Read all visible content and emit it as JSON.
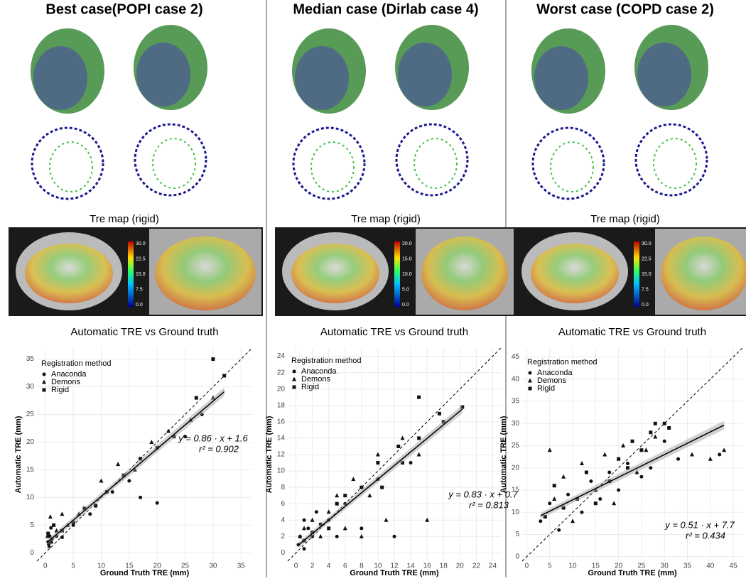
{
  "panels": [
    {
      "title": "Best case(POPI case 2)",
      "tre_label": "Tre map (rigid)",
      "colorbar_ticks": [
        "30.0",
        "22.5",
        "15.0",
        "7.5",
        "0.0"
      ]
    },
    {
      "title": "Median case (Dirlab case 4)",
      "tre_label": "Tre map (rigid)",
      "colorbar_ticks": [
        "20.0",
        "15.0",
        "10.0",
        "5.0",
        "0.0"
      ]
    },
    {
      "title": "Worst case (COPD case 2)",
      "tre_label": "Tre map (rigid)",
      "colorbar_ticks": [
        "30.0",
        "22.5",
        "15.0",
        "7.5",
        "0.0"
      ]
    }
  ],
  "chart_data": [
    {
      "type": "scatter",
      "title": "Automatic TRE vs Ground truth",
      "x_label": "Ground Truth TRE (mm)",
      "y_label": "Automatic TRE (mm)",
      "legend_title": "Registration method",
      "xlim": [
        -1.5,
        37
      ],
      "ylim": [
        -1.5,
        37
      ],
      "xticks": [
        0,
        5,
        10,
        15,
        20,
        25,
        30,
        35
      ],
      "yticks": [
        0,
        5,
        10,
        15,
        20,
        25,
        30,
        35
      ],
      "grid": true,
      "fit": {
        "slope": 0.86,
        "intercept": 1.6
      },
      "annotations": [
        "y = 0.86 · x + 1.6",
        "r² = 0.902"
      ],
      "series": [
        {
          "name": "Anaconda",
          "marker": "circle",
          "color": "#111111",
          "x": [
            0.5,
            0.8,
            1,
            1.2,
            0.6,
            2,
            3,
            5,
            8,
            12,
            15,
            17,
            20,
            25,
            28
          ],
          "values": [
            2,
            3,
            4.5,
            2.5,
            1.5,
            3,
            2.8,
            5,
            7,
            11,
            13,
            10,
            9,
            21,
            25
          ]
        },
        {
          "name": "Demons",
          "marker": "triangle",
          "color": "#111111",
          "x": [
            0.4,
            0.9,
            1.1,
            2,
            4,
            6,
            10,
            13,
            16,
            19,
            22,
            26,
            30,
            0.7,
            3
          ],
          "values": [
            3,
            6.5,
            2,
            4,
            5,
            7,
            13,
            16,
            15,
            20,
            22,
            24,
            28,
            1.2,
            7
          ]
        },
        {
          "name": "Rigid",
          "marker": "square",
          "color": "#111111",
          "x": [
            0.5,
            1,
            1.5,
            3,
            5,
            7,
            9,
            11,
            14,
            17,
            20,
            23,
            27,
            30,
            32
          ],
          "values": [
            3.5,
            2,
            5,
            4,
            5.5,
            8,
            8.5,
            11,
            14,
            17,
            19,
            21,
            28,
            35,
            32
          ]
        }
      ]
    },
    {
      "type": "scatter",
      "title": "Automatic TRE vs Ground truth",
      "x_label": "Ground Truth TRE (mm)",
      "y_label": "Automatic TRE (mm)",
      "legend_title": "Registration method",
      "xlim": [
        -1,
        25
      ],
      "ylim": [
        -1,
        25
      ],
      "xticks": [
        0,
        2,
        4,
        6,
        8,
        10,
        12,
        14,
        16,
        18,
        20,
        22,
        24
      ],
      "yticks": [
        0,
        2,
        4,
        6,
        8,
        10,
        12,
        14,
        16,
        18,
        20,
        22,
        24
      ],
      "grid": true,
      "fit": {
        "slope": 0.83,
        "intercept": 0.7
      },
      "annotations": [
        "y = 0.83 · x + 0.7",
        "r² = 0.813"
      ],
      "series": [
        {
          "name": "Anaconda",
          "marker": "circle",
          "color": "#111111",
          "x": [
            0.3,
            0.5,
            1,
            1.5,
            2,
            3,
            4,
            5,
            6,
            8,
            10,
            12,
            14,
            1,
            2.5
          ],
          "values": [
            1,
            2,
            0.5,
            3,
            2,
            3.5,
            4,
            2,
            6,
            3,
            9,
            2,
            11,
            4,
            5
          ]
        },
        {
          "name": "Demons",
          "marker": "triangle",
          "color": "#111111",
          "x": [
            0.5,
            1,
            2,
            3,
            4,
            5,
            6,
            7,
            8,
            9,
            10,
            11,
            13,
            15,
            16
          ],
          "values": [
            2,
            3,
            4,
            2,
            5,
            7,
            3,
            9,
            2,
            7,
            12,
            4,
            14,
            12,
            4
          ]
        },
        {
          "name": "Rigid",
          "marker": "square",
          "color": "#111111",
          "x": [
            1,
            2,
            4,
            5,
            6,
            8,
            10,
            10.5,
            12.5,
            13,
            15,
            15,
            17.5,
            18,
            20.3
          ],
          "values": [
            1.5,
            2.5,
            3,
            6,
            7,
            8,
            11,
            8,
            13,
            11,
            19,
            14,
            17,
            16,
            17.8
          ]
        }
      ]
    },
    {
      "type": "scatter",
      "title": "Automatic TRE vs Ground truth",
      "x_label": "Ground Truth TRE (mm)",
      "y_label": "Automatic TRE (mm)",
      "legend_title": "Registration method",
      "xlim": [
        -1,
        47
      ],
      "ylim": [
        -1,
        47
      ],
      "xticks": [
        0,
        5,
        10,
        15,
        20,
        25,
        30,
        35,
        40,
        45
      ],
      "yticks": [
        0,
        5,
        10,
        15,
        20,
        25,
        30,
        35,
        40,
        45
      ],
      "grid": true,
      "fit": {
        "slope": 0.51,
        "intercept": 7.7
      },
      "annotations": [
        "y = 0.51 · x + 7.7",
        "r² = 0.434"
      ],
      "series": [
        {
          "name": "Anaconda",
          "marker": "circle",
          "color": "#111111",
          "x": [
            3,
            5,
            7,
            9,
            12,
            14,
            16,
            18,
            20,
            22,
            25,
            27,
            30,
            33,
            42
          ],
          "values": [
            8,
            12,
            6,
            14,
            10,
            17,
            13,
            19,
            15,
            21,
            18,
            20,
            26,
            22,
            23
          ]
        },
        {
          "name": "Demons",
          "marker": "triangle",
          "color": "#111111",
          "x": [
            5,
            6,
            8,
            10,
            12,
            15,
            17,
            19,
            21,
            24,
            26,
            28,
            36,
            40,
            43
          ],
          "values": [
            24,
            13,
            18,
            8,
            21,
            15,
            23,
            12,
            25,
            19,
            24,
            27,
            23,
            22,
            24
          ]
        },
        {
          "name": "Rigid",
          "marker": "square",
          "color": "#111111",
          "x": [
            4,
            6,
            8,
            11,
            13,
            15,
            18,
            20,
            22,
            23,
            25,
            27,
            28,
            30,
            31
          ],
          "values": [
            9,
            16,
            11,
            13,
            19,
            12,
            17,
            22,
            20,
            26,
            24,
            28,
            30,
            30,
            29
          ]
        }
      ]
    }
  ]
}
